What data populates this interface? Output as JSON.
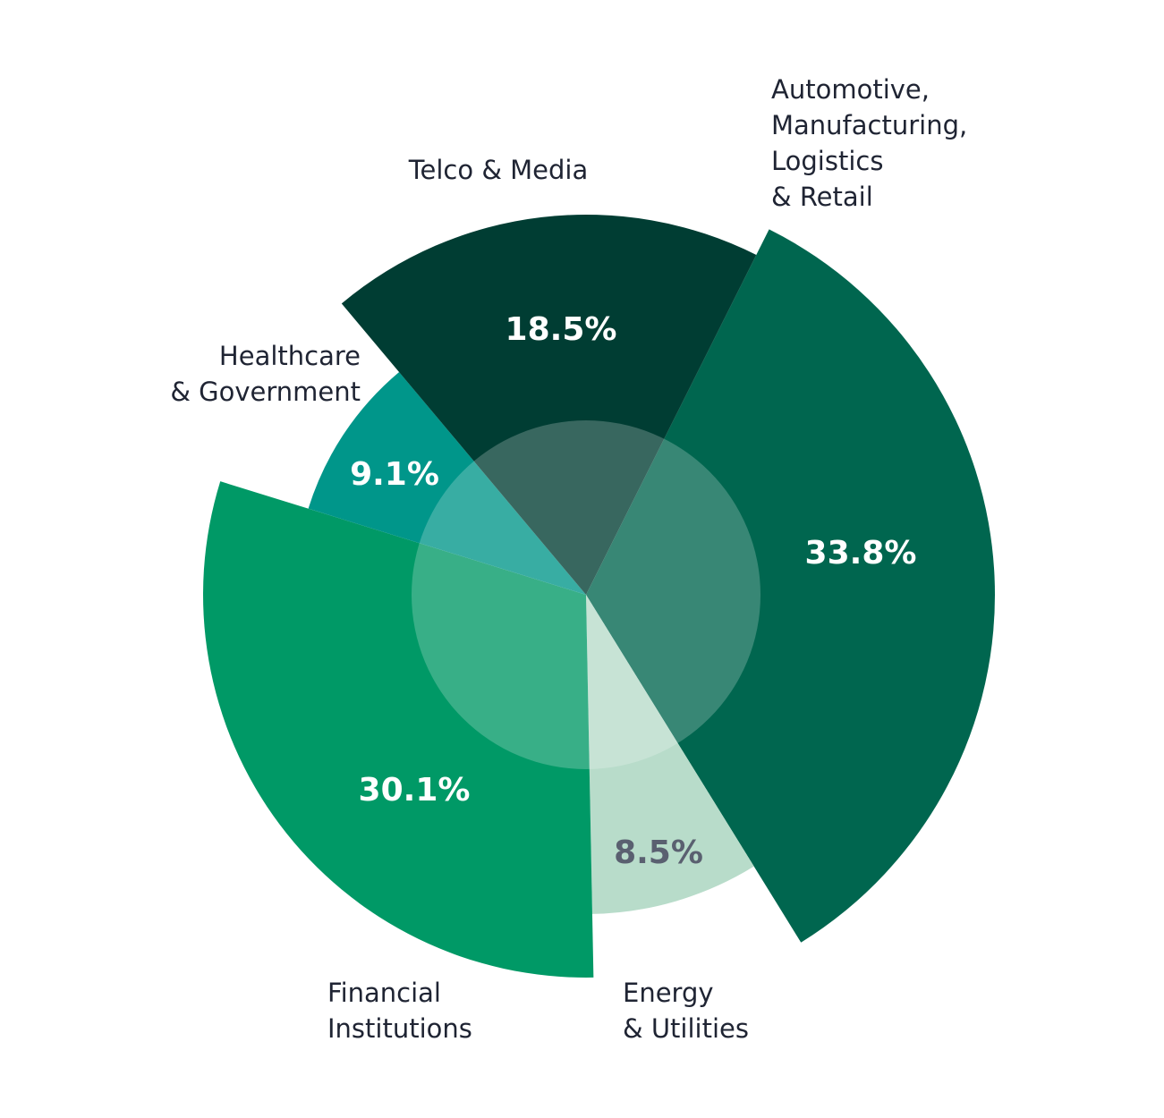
{
  "chart_data": {
    "type": "pie",
    "categories": [
      "Automotive,\nManufacturing,\nLogistics\n& Retail",
      "Energy\n& Utilities",
      "Financial\nInstitutions",
      "Healthcare\n& Government",
      "Telco & Media"
    ],
    "values": [
      33.8,
      8.5,
      30.1,
      9.1,
      18.5
    ],
    "value_labels": [
      "33.8%",
      "8.5%",
      "30.1%",
      "9.1%",
      "18.5%"
    ],
    "colors": [
      "#00664f",
      "#b8dcca",
      "#009966",
      "#00968a",
      "#003d33"
    ]
  }
}
